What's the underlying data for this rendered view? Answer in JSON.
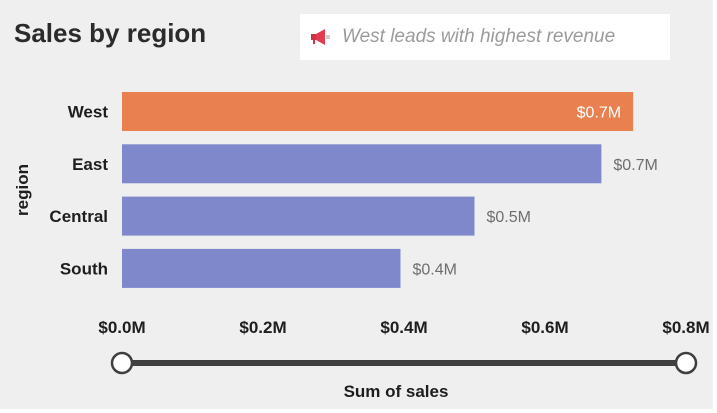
{
  "title": "Sales by region",
  "callout": {
    "icon": "megaphone-icon",
    "text": "West leads with highest revenue"
  },
  "chart_data": {
    "type": "bar",
    "orientation": "horizontal",
    "categories": [
      "West",
      "East",
      "Central",
      "South"
    ],
    "values": [
      0.725,
      0.68,
      0.5,
      0.395
    ],
    "data_labels": [
      "$0.7M",
      "$0.7M",
      "$0.5M",
      "$0.4M"
    ],
    "highlight_index": 0,
    "xlabel": "Sum of sales",
    "ylabel": "region",
    "xlim": [
      0,
      0.8
    ],
    "x_ticks": [
      0,
      0.2,
      0.4,
      0.6,
      0.8
    ],
    "x_tick_labels": [
      "$0.0M",
      "$0.2M",
      "$0.4M",
      "$0.6M",
      "$0.8M"
    ],
    "grid": false,
    "range_slider": {
      "min": 0,
      "max": 0.8
    },
    "colors": {
      "highlight": "#e8804f",
      "default": "#8088cc",
      "highlight_label": "#ffffff",
      "default_label": "#6e6e6e"
    }
  }
}
